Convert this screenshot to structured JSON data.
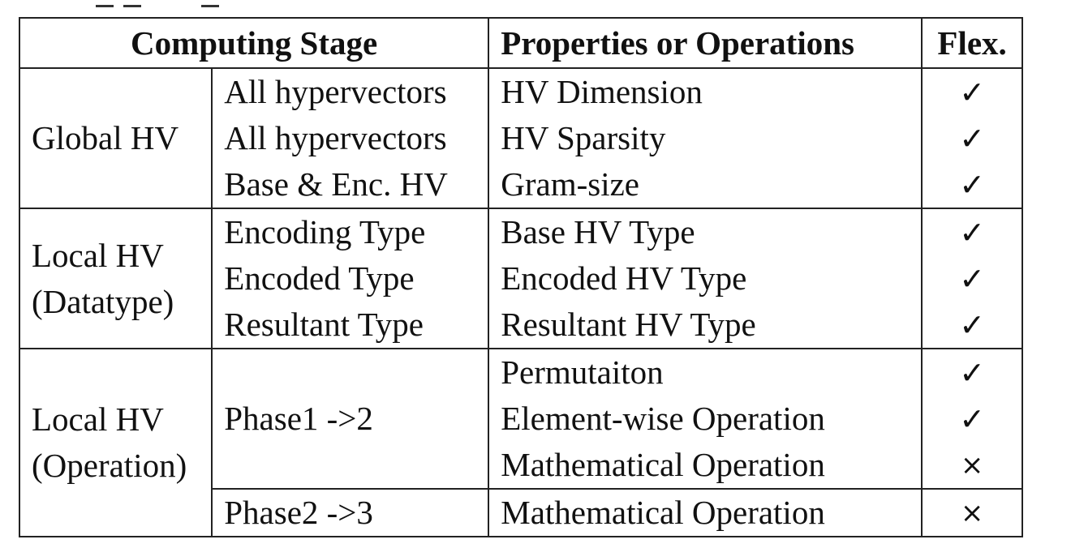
{
  "table": {
    "headers": {
      "stage": "Computing Stage",
      "properties": "Properties or Operations",
      "flex": "Flex."
    },
    "groups": [
      {
        "label_lines": [
          "Global HV"
        ],
        "rows": [
          {
            "sub": "All hypervectors",
            "prop": "HV Dimension",
            "flex": "✓"
          },
          {
            "sub": "All hypervectors",
            "prop": "HV Sparsity",
            "flex": "✓"
          },
          {
            "sub": "Base & Enc. HV",
            "prop": "Gram-size",
            "flex": "✓"
          }
        ]
      },
      {
        "label_lines": [
          "Local HV",
          "(Datatype)"
        ],
        "rows": [
          {
            "sub": "Encoding Type",
            "prop": "Base HV Type",
            "flex": "✓"
          },
          {
            "sub": "Encoded Type",
            "prop": "Encoded HV Type",
            "flex": "✓"
          },
          {
            "sub": "Resultant Type",
            "prop": "Resultant HV Type",
            "flex": "✓"
          }
        ]
      },
      {
        "label_lines": [
          "Local HV",
          "(Operation)"
        ],
        "phases": [
          {
            "sub": "Phase1 ->2",
            "rows": [
              {
                "prop": "Permutaiton",
                "flex": "✓"
              },
              {
                "prop": "Element-wise Operation",
                "flex": "✓"
              },
              {
                "prop": "Mathematical Operation",
                "flex": "×"
              }
            ]
          },
          {
            "sub": "Phase2 ->3",
            "rows": [
              {
                "prop": "Mathematical Operation",
                "flex": "×"
              }
            ]
          }
        ]
      }
    ]
  }
}
